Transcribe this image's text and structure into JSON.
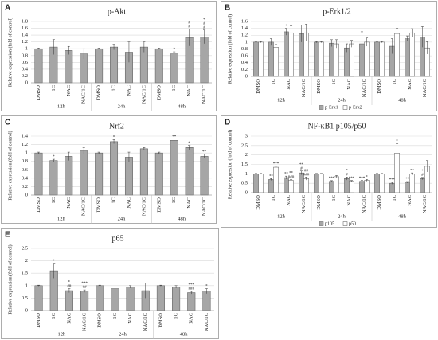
{
  "chart_data": [
    {
      "type": "bar",
      "panel": "A",
      "title": "p-Akt",
      "ylabel": "Relative expression (fold of control)",
      "categories": [
        "DMSO",
        "1C",
        "NAC",
        "NAC/1C",
        "DMSO",
        "1C",
        "NAC",
        "NAC/1C",
        "DMSO",
        "1C",
        "NAC",
        "NAC/1C"
      ],
      "groups": [
        "12h",
        "24h",
        "48h"
      ],
      "series": [
        {
          "color": "#a6a6a6",
          "values": [
            1.0,
            1.05,
            0.95,
            0.85,
            1.0,
            1.05,
            0.9,
            1.05,
            1.0,
            0.85,
            1.33,
            1.35
          ],
          "errors": [
            0.02,
            0.22,
            0.12,
            0.15,
            0.02,
            0.08,
            0.3,
            0.15,
            0.02,
            0.06,
            0.25,
            0.2
          ],
          "annotations": [
            null,
            null,
            null,
            null,
            null,
            null,
            null,
            null,
            null,
            [
              "*"
            ],
            [
              "#",
              "#"
            ],
            [
              "*",
              "#",
              "#"
            ]
          ]
        }
      ],
      "ylim": [
        0,
        1.8
      ],
      "yticks": [
        0,
        0.2,
        0.4,
        0.6,
        0.8,
        1,
        1.2,
        1.4,
        1.6,
        1.8
      ]
    },
    {
      "type": "bar",
      "panel": "B",
      "title": "p-Erk1/2",
      "ylabel": "Relative expression (fold of control)",
      "categories": [
        "DMSO",
        "1C",
        "NAC",
        "NAC/1C",
        "DMSO",
        "1C",
        "NAC",
        "NAC/1C",
        "DMSO",
        "1C",
        "NAC",
        "NAC/1C"
      ],
      "groups": [
        "12h",
        "24h",
        "48h"
      ],
      "series": [
        {
          "name": "p-Erk1",
          "color": "#a6a6a6",
          "values": [
            1.0,
            1.0,
            1.3,
            1.25,
            1.0,
            0.97,
            0.83,
            0.95,
            1.0,
            0.88,
            1.1,
            1.15
          ],
          "errors": [
            0.02,
            0.1,
            0.1,
            0.25,
            0.02,
            0.1,
            0.12,
            0.35,
            0.02,
            0.22,
            0.08,
            0.3
          ],
          "annotations": [
            null,
            null,
            [
              "*"
            ],
            null,
            null,
            null,
            null,
            null,
            null,
            null,
            null,
            null
          ]
        },
        {
          "name": "p-Erk2",
          "color": "#ffffff",
          "values": [
            1.0,
            0.85,
            1.27,
            1.27,
            1.0,
            0.95,
            0.95,
            1.0,
            1.0,
            1.25,
            1.27,
            0.83
          ],
          "errors": [
            0.02,
            0.08,
            0.2,
            0.25,
            0.02,
            0.12,
            0.1,
            0.12,
            0.02,
            0.15,
            0.12,
            0.18
          ],
          "annotations": [
            null,
            null,
            null,
            null,
            null,
            null,
            null,
            null,
            null,
            null,
            null,
            null
          ]
        }
      ],
      "ylim": [
        0,
        1.6
      ],
      "yticks": [
        0,
        0.2,
        0.4,
        0.6,
        0.8,
        1,
        1.2,
        1.4,
        1.6
      ],
      "legend": "bottom"
    },
    {
      "type": "bar",
      "panel": "C",
      "title": "Nrf2",
      "ylabel": "Relative expression (fold of control)",
      "categories": [
        "DMSO",
        "1C",
        "NAC",
        "NAC/1C",
        "DMSO",
        "1C",
        "NAC",
        "NAC/1C",
        "DMSO",
        "1C",
        "NAC",
        "NAC/1C"
      ],
      "groups": [
        "12h",
        "24h",
        "48h"
      ],
      "series": [
        {
          "color": "#a6a6a6",
          "values": [
            1.0,
            0.82,
            0.92,
            1.05,
            1.0,
            1.27,
            0.9,
            1.1,
            1.0,
            1.3,
            1.13,
            0.92
          ],
          "errors": [
            0.02,
            0.03,
            0.1,
            0.08,
            0.02,
            0.05,
            0.12,
            0.03,
            0.02,
            0.03,
            0.05,
            0.05
          ],
          "annotations": [
            null,
            [
              "*"
            ],
            null,
            null,
            null,
            [
              "*"
            ],
            null,
            null,
            null,
            [
              "**"
            ],
            [
              "*"
            ],
            [
              "**"
            ]
          ]
        }
      ],
      "ylim": [
        0,
        1.4
      ],
      "yticks": [
        0,
        0.2,
        0.4,
        0.6,
        0.8,
        1,
        1.2,
        1.4
      ]
    },
    {
      "type": "bar",
      "panel": "D",
      "title": "NF-κB1 p105/p50",
      "ylabel": "Relative expression (fold of control)",
      "categories": [
        "DMSO",
        "1C",
        "NAC",
        "NAC/1C",
        "DMSO",
        "1C",
        "NAC",
        "NAC/1C",
        "DMSO",
        "1C",
        "NAC",
        "NAC/1C"
      ],
      "groups": [
        "12h",
        "24h",
        "48h"
      ],
      "series": [
        {
          "name": "p105",
          "color": "#a6a6a6",
          "values": [
            1,
            0.7,
            0.8,
            1.05,
            1,
            0.6,
            0.75,
            0.6,
            1,
            0.5,
            0.55,
            0.75
          ],
          "errors": [
            0.02,
            0.05,
            0.08,
            0.1,
            0.02,
            0.04,
            0.08,
            0.05,
            0.02,
            0.05,
            0.04,
            0.06
          ],
          "annotations": [
            null,
            [
              "**"
            ],
            [
              "**"
            ],
            [
              "**",
              "#"
            ],
            null,
            [
              "***"
            ],
            [
              "*",
              "#"
            ],
            [
              "***"
            ],
            null,
            [
              "***"
            ],
            [
              "**"
            ],
            [
              "*",
              "#"
            ]
          ]
        },
        {
          "name": "p50",
          "color": "#ffffff",
          "values": [
            1,
            1.35,
            0.65,
            0.75,
            1,
            0.85,
            0.6,
            0.65,
            1,
            2.1,
            1.0,
            1.4
          ],
          "errors": [
            0.02,
            0.05,
            0.05,
            0.08,
            0.02,
            0.06,
            0.05,
            0.05,
            0.02,
            0.5,
            0.05,
            0.3
          ],
          "annotations": [
            null,
            [
              "***"
            ],
            [
              "**",
              "###"
            ],
            [
              "##",
              "###"
            ],
            null,
            null,
            [
              "***"
            ],
            [
              "*"
            ],
            null,
            [
              "*"
            ],
            [
              "**"
            ],
            null
          ]
        }
      ],
      "ylim": [
        0,
        3
      ],
      "yticks": [
        0,
        0.5,
        1,
        1.5,
        2,
        2.5,
        3
      ],
      "legend": "bottom"
    },
    {
      "type": "bar",
      "panel": "E",
      "title": "p65",
      "ylabel": "Relative expression (fold of control)",
      "categories": [
        "DMSO",
        "1C",
        "NAC",
        "NAC/1C",
        "DMSO",
        "1C",
        "NAC",
        "NAC/1C",
        "DMSO",
        "1C",
        "NAC",
        "NAC/1C"
      ],
      "groups": [
        "12h",
        "24h",
        "48h"
      ],
      "series": [
        {
          "color": "#a6a6a6",
          "values": [
            1.0,
            1.6,
            0.8,
            0.78,
            1.0,
            0.88,
            0.95,
            0.8,
            1.0,
            0.95,
            0.72,
            0.78
          ],
          "errors": [
            0.02,
            0.3,
            0.08,
            0.05,
            0.02,
            0.06,
            0.05,
            0.3,
            0.02,
            0.05,
            0.05,
            0.1
          ],
          "annotations": [
            null,
            [
              "*"
            ],
            [
              "*",
              "##"
            ],
            [
              "***",
              "##"
            ],
            null,
            null,
            null,
            null,
            null,
            null,
            [
              "***",
              "###"
            ],
            [
              "*"
            ]
          ]
        }
      ],
      "ylim": [
        0,
        2.5
      ],
      "yticks": [
        0,
        0.5,
        1,
        1.5,
        2,
        2.5
      ]
    }
  ]
}
